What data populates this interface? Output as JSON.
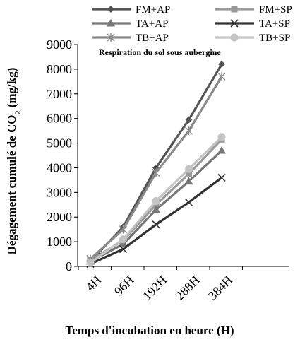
{
  "chart_data": {
    "type": "line",
    "title": "Respiration du sol sous aubergine",
    "xlabel": "Temps d'incubation en heure (H)",
    "ylabel_main": "Dégagement cumulé de CO",
    "ylabel_sub": "2",
    "ylabel_unit": " (mg/kg)",
    "categories": [
      "4H",
      "96H",
      "192H",
      "288H",
      "384H"
    ],
    "ylim": [
      0,
      9000
    ],
    "yticks": [
      0,
      1000,
      2000,
      3000,
      4000,
      5000,
      6000,
      7000,
      8000,
      9000
    ],
    "grid": false,
    "legend_position": "top",
    "series": [
      {
        "name": "FM+AP",
        "marker": "diamond",
        "color": "#555555",
        "values": [
          200,
          1600,
          4000,
          5950,
          8200
        ]
      },
      {
        "name": "FM+SP",
        "marker": "square",
        "color": "#9a9a9a",
        "values": [
          250,
          1050,
          2500,
          3750,
          5150
        ]
      },
      {
        "name": "TA+AP",
        "marker": "triangle",
        "color": "#777777",
        "values": [
          200,
          900,
          2300,
          3450,
          4700
        ]
      },
      {
        "name": "TA+SP",
        "marker": "x",
        "color": "#333333",
        "values": [
          100,
          700,
          1700,
          2600,
          3600
        ]
      },
      {
        "name": "TB+AP",
        "marker": "star",
        "color": "#8a8a8a",
        "values": [
          300,
          1500,
          3800,
          5500,
          7700
        ]
      },
      {
        "name": "TB+SP",
        "marker": "circle",
        "color": "#c4c4c4",
        "values": [
          150,
          1100,
          2650,
          3950,
          5250
        ]
      }
    ]
  }
}
